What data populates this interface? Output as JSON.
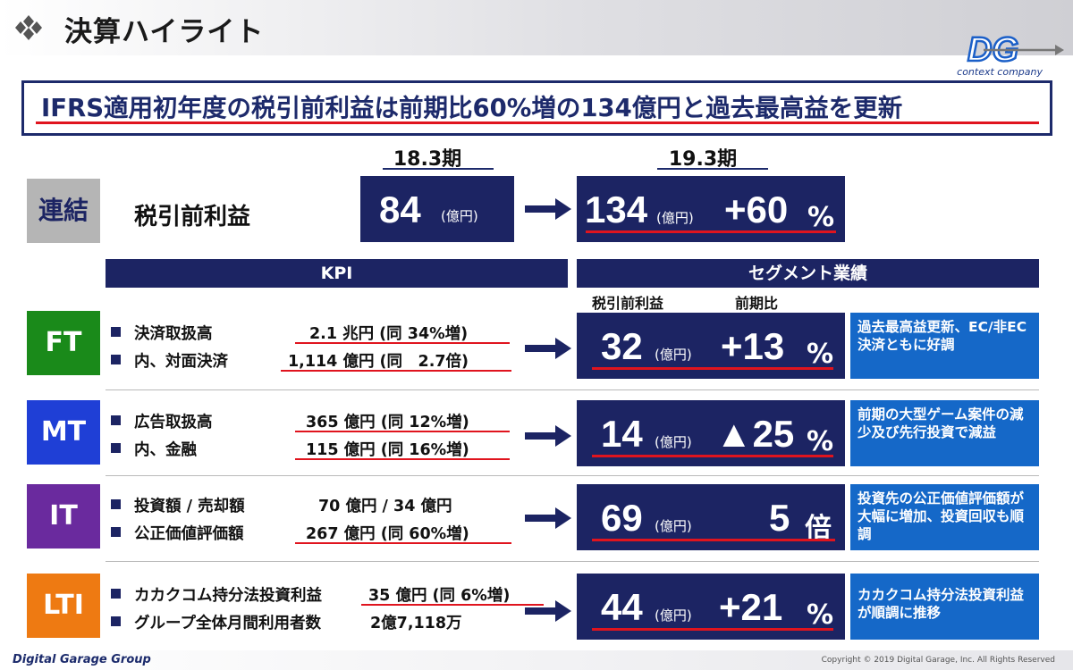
{
  "header": {
    "title": "決算ハイライト"
  },
  "logo": {
    "monogram": "DG",
    "tagline": "context company"
  },
  "headline": "IFRS適用初年度の税引前利益は前期比60%増の134億円と過去最高益を更新",
  "periods": {
    "prev": "18.3期",
    "curr": "19.3期"
  },
  "consolidated": {
    "tag": "連結",
    "label": "税引前利益",
    "prev_value": "84",
    "prev_unit": "(億円)",
    "curr_value": "134",
    "curr_unit": "(億円)",
    "change": "+60",
    "change_unit": "%"
  },
  "section_headers": {
    "kpi": "KPI",
    "segment": "セグメント業績"
  },
  "segment_subheaders": {
    "profit": "税引前利益",
    "yoy": "前期比"
  },
  "segments": [
    {
      "tag": "FT",
      "color": "#1a8a1a",
      "kpis": [
        {
          "label": "決済取扱高",
          "value": "2.1 兆円 (同 34%増)"
        },
        {
          "label": "内、対面決済",
          "value": "1,114 億円 (同　2.7倍)"
        }
      ],
      "profit": "32",
      "unit": "(億円)",
      "change": "+13",
      "change_unit": "%",
      "comment": "過去最高益更新、EC/非EC決済ともに好調"
    },
    {
      "tag": "MT",
      "color": "#1f3fd6",
      "kpis": [
        {
          "label": "広告取扱高",
          "value": "365 億円 (同 12%増)"
        },
        {
          "label": "内、金融",
          "value": "115 億円 (同 16%増)"
        }
      ],
      "profit": "14",
      "unit": "(億円)",
      "change": "▲25",
      "change_unit": "%",
      "comment": "前期の大型ゲーム案件の減少及び先行投資で減益"
    },
    {
      "tag": "IT",
      "color": "#6a2a9e",
      "kpis": [
        {
          "label": "投資額 / 売却額",
          "value": "70 億円 / 34 億円"
        },
        {
          "label": "公正価値評価額",
          "value": "267 億円 (同 60%増)"
        }
      ],
      "profit": "69",
      "unit": "(億円)",
      "change": "5",
      "change_unit": "倍",
      "comment": "投資先の公正価値評価額が大幅に増加、投資回収も順調"
    },
    {
      "tag": "LTI",
      "color": "#ee7a12",
      "kpis": [
        {
          "label": "カカクコム持分法投資利益",
          "value": "35 億円 (同 6%増)"
        },
        {
          "label": "グループ全体月間利用者数",
          "value": "2億7,118万"
        }
      ],
      "profit": "44",
      "unit": "(億円)",
      "change": "+21",
      "change_unit": "%",
      "comment": "カカクコム持分法投資利益が順調に推移"
    }
  ],
  "footer": {
    "brand": "Digital Garage Group",
    "copyright": "Copyright © 2019 Digital Garage, Inc. All Rights Reserved"
  }
}
